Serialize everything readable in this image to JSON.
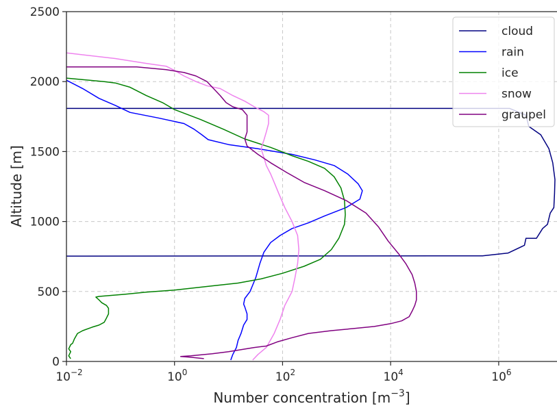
{
  "chart_data": {
    "type": "line",
    "xlabel": "Number concentration [m",
    "xlabel_sup": "−3",
    "xlabel_end": "]",
    "ylabel": "Altitude [m]",
    "xscale": "log",
    "xlim": [
      0.01,
      12000000
    ],
    "ylim": [
      0,
      2500
    ],
    "grid": true,
    "legend_position": "top-right",
    "x_ticks": [
      {
        "value": 0.01,
        "base": "10",
        "exp": "−2"
      },
      {
        "value": 1,
        "base": "10",
        "exp": "0"
      },
      {
        "value": 100,
        "base": "10",
        "exp": "2"
      },
      {
        "value": 10000,
        "base": "10",
        "exp": "4"
      },
      {
        "value": 1000000,
        "base": "10",
        "exp": "6"
      }
    ],
    "y_ticks": [
      {
        "value": 0,
        "label": "0"
      },
      {
        "value": 500,
        "label": "500"
      },
      {
        "value": 1000,
        "label": "1000"
      },
      {
        "value": 1500,
        "label": "1500"
      },
      {
        "value": 2000,
        "label": "2000"
      },
      {
        "value": 2500,
        "label": "2500"
      }
    ],
    "series": [
      {
        "name": "cloud",
        "color": "#000080",
        "points": [
          [
            0.01,
            1808
          ],
          [
            1600000,
            1808
          ],
          [
            3200000,
            1760
          ],
          [
            3600000,
            1680
          ],
          [
            6000000,
            1620
          ],
          [
            8500000,
            1520
          ],
          [
            10000000,
            1420
          ],
          [
            11000000,
            1300
          ],
          [
            10800000,
            1200
          ],
          [
            10500000,
            1100
          ],
          [
            9000000,
            1060
          ],
          [
            8000000,
            980
          ],
          [
            6500000,
            950
          ],
          [
            5000000,
            880
          ],
          [
            3200000,
            880
          ],
          [
            3000000,
            830
          ],
          [
            1500000,
            775
          ],
          [
            500000,
            755
          ],
          [
            0.01,
            753
          ]
        ]
      },
      {
        "name": "rain",
        "color": "#0000ff",
        "points": [
          [
            0.01,
            2010
          ],
          [
            0.02,
            1950
          ],
          [
            0.04,
            1880
          ],
          [
            0.08,
            1830
          ],
          [
            0.15,
            1780
          ],
          [
            0.5,
            1740
          ],
          [
            1.5,
            1700
          ],
          [
            2.3,
            1660
          ],
          [
            3.2,
            1620
          ],
          [
            4.2,
            1585
          ],
          [
            10,
            1550
          ],
          [
            35,
            1520
          ],
          [
            150,
            1480
          ],
          [
            400,
            1440
          ],
          [
            900,
            1400
          ],
          [
            1600,
            1340
          ],
          [
            2500,
            1270
          ],
          [
            3000,
            1220
          ],
          [
            2700,
            1160
          ],
          [
            1500,
            1100
          ],
          [
            600,
            1040
          ],
          [
            300,
            990
          ],
          [
            150,
            950
          ],
          [
            90,
            900
          ],
          [
            60,
            850
          ],
          [
            45,
            780
          ],
          [
            38,
            700
          ],
          [
            32,
            600
          ],
          [
            25,
            500
          ],
          [
            20,
            450
          ],
          [
            19,
            410
          ],
          [
            20,
            390
          ],
          [
            22,
            340
          ],
          [
            22,
            300
          ],
          [
            19,
            260
          ],
          [
            17,
            200
          ],
          [
            15,
            150
          ],
          [
            14,
            100
          ],
          [
            12,
            50
          ],
          [
            11,
            10
          ]
        ]
      },
      {
        "name": "ice",
        "color": "#008000",
        "points": [
          [
            0.01,
            2025
          ],
          [
            0.05,
            2000
          ],
          [
            0.08,
            1990
          ],
          [
            0.15,
            1960
          ],
          [
            0.3,
            1900
          ],
          [
            0.6,
            1850
          ],
          [
            1,
            1800
          ],
          [
            3,
            1730
          ],
          [
            8,
            1660
          ],
          [
            20,
            1590
          ],
          [
            60,
            1530
          ],
          [
            150,
            1470
          ],
          [
            300,
            1430
          ],
          [
            600,
            1380
          ],
          [
            900,
            1320
          ],
          [
            1200,
            1240
          ],
          [
            1400,
            1150
          ],
          [
            1450,
            1050
          ],
          [
            1400,
            980
          ],
          [
            1100,
            880
          ],
          [
            800,
            800
          ],
          [
            500,
            730
          ],
          [
            250,
            680
          ],
          [
            100,
            630
          ],
          [
            40,
            590
          ],
          [
            15,
            560
          ],
          [
            5,
            540
          ],
          [
            1,
            510
          ],
          [
            0.3,
            495
          ],
          [
            0.12,
            480
          ],
          [
            0.04,
            465
          ],
          [
            0.035,
            460
          ],
          [
            0.04,
            440
          ],
          [
            0.045,
            420
          ],
          [
            0.055,
            400
          ],
          [
            0.06,
            380
          ],
          [
            0.06,
            340
          ],
          [
            0.055,
            310
          ],
          [
            0.05,
            280
          ],
          [
            0.04,
            260
          ],
          [
            0.03,
            245
          ],
          [
            0.02,
            220
          ],
          [
            0.016,
            200
          ],
          [
            0.014,
            160
          ],
          [
            0.013,
            130
          ],
          [
            0.012,
            120
          ],
          [
            0.011,
            90
          ],
          [
            0.012,
            70
          ],
          [
            0.011,
            40
          ],
          [
            0.012,
            20
          ]
        ]
      },
      {
        "name": "snow",
        "color": "#ee82ee",
        "points": [
          [
            0.01,
            2205
          ],
          [
            0.08,
            2165
          ],
          [
            0.3,
            2130
          ],
          [
            0.7,
            2110
          ],
          [
            1,
            2080
          ],
          [
            1.5,
            2040
          ],
          [
            2.5,
            2000
          ],
          [
            4,
            1970
          ],
          [
            7,
            1950
          ],
          [
            12,
            1900
          ],
          [
            20,
            1860
          ],
          [
            30,
            1820
          ],
          [
            45,
            1785
          ],
          [
            55,
            1760
          ],
          [
            55,
            1700
          ],
          [
            50,
            1640
          ],
          [
            45,
            1580
          ],
          [
            40,
            1520
          ],
          [
            45,
            1460
          ],
          [
            50,
            1400
          ],
          [
            60,
            1340
          ],
          [
            70,
            1280
          ],
          [
            85,
            1200
          ],
          [
            110,
            1100
          ],
          [
            150,
            1000
          ],
          [
            190,
            900
          ],
          [
            200,
            800
          ],
          [
            190,
            700
          ],
          [
            170,
            600
          ],
          [
            150,
            500
          ],
          [
            110,
            400
          ],
          [
            90,
            300
          ],
          [
            70,
            200
          ],
          [
            50,
            100
          ],
          [
            35,
            50
          ],
          [
            28,
            10
          ]
        ]
      },
      {
        "name": "graupel",
        "color": "#800080",
        "points": [
          [
            0.01,
            2105
          ],
          [
            0.2,
            2105
          ],
          [
            0.7,
            2085
          ],
          [
            1.5,
            2065
          ],
          [
            2.5,
            2040
          ],
          [
            4,
            2000
          ],
          [
            5,
            1960
          ],
          [
            7,
            1900
          ],
          [
            9,
            1850
          ],
          [
            12,
            1820
          ],
          [
            18,
            1800
          ],
          [
            22,
            1760
          ],
          [
            22,
            1700
          ],
          [
            22,
            1640
          ],
          [
            20,
            1590
          ],
          [
            22,
            1540
          ],
          [
            35,
            1480
          ],
          [
            60,
            1420
          ],
          [
            120,
            1350
          ],
          [
            250,
            1280
          ],
          [
            600,
            1220
          ],
          [
            1500,
            1150
          ],
          [
            3500,
            1060
          ],
          [
            6000,
            960
          ],
          [
            9000,
            860
          ],
          [
            14000,
            770
          ],
          [
            19000,
            700
          ],
          [
            25000,
            620
          ],
          [
            28000,
            560
          ],
          [
            30000,
            500
          ],
          [
            30000,
            440
          ],
          [
            28000,
            400
          ],
          [
            25000,
            360
          ],
          [
            22000,
            320
          ],
          [
            16000,
            290
          ],
          [
            10000,
            270
          ],
          [
            5000,
            250
          ],
          [
            2000,
            235
          ],
          [
            800,
            220
          ],
          [
            300,
            200
          ],
          [
            150,
            170
          ],
          [
            80,
            140
          ],
          [
            50,
            110
          ],
          [
            30,
            100
          ],
          [
            10,
            70
          ],
          [
            5,
            55
          ],
          [
            2,
            40
          ],
          [
            1.3,
            35
          ],
          [
            2,
            30
          ],
          [
            3.5,
            20
          ]
        ]
      }
    ]
  }
}
